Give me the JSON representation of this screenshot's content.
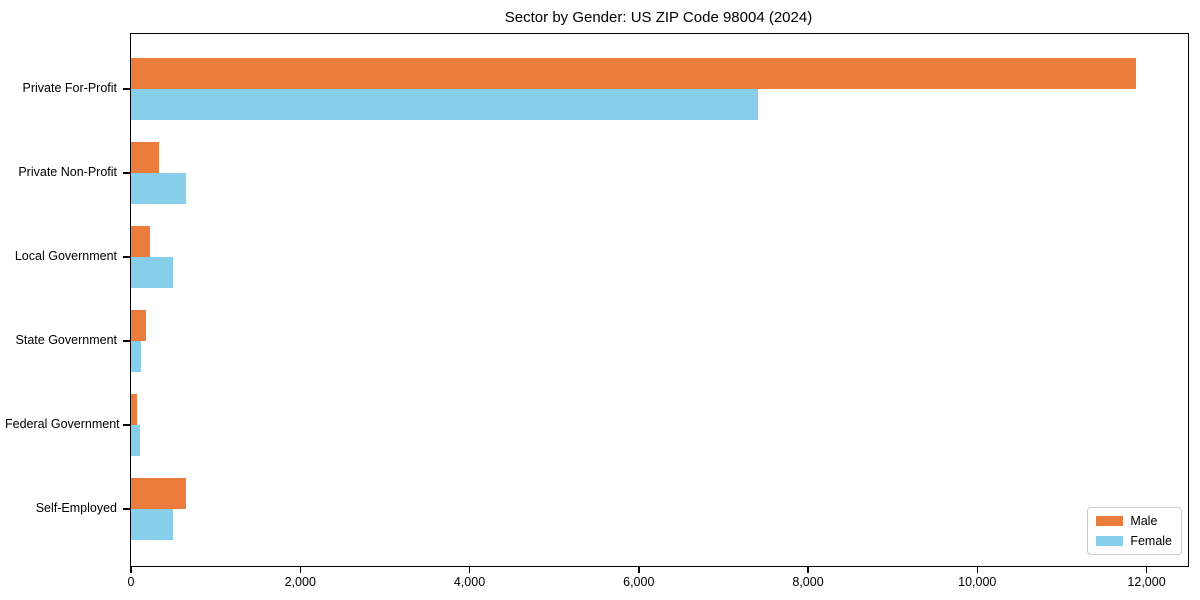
{
  "title": "Sector by Gender: US ZIP Code 98004 (2024)",
  "chart_data": {
    "type": "bar",
    "orientation": "horizontal",
    "title": "Sector by Gender: US ZIP Code 98004 (2024)",
    "categories": [
      "Private For-Profit",
      "Private Non-Profit",
      "Local Government",
      "State Government",
      "Federal Government",
      "Self-Employed"
    ],
    "series": [
      {
        "name": "Male",
        "color": "#ec7c3b",
        "values": [
          11880,
          330,
          220,
          180,
          75,
          655
        ]
      },
      {
        "name": "Female",
        "color": "#87ceeb",
        "values": [
          7410,
          645,
          490,
          120,
          110,
          490
        ]
      }
    ],
    "xlabel": "",
    "ylabel": "",
    "xlim": [
      0,
      12490
    ],
    "xticks": [
      0,
      2000,
      4000,
      6000,
      8000,
      10000,
      12000
    ],
    "xtick_labels": [
      "0",
      "2,000",
      "4,000",
      "6,000",
      "8,000",
      "10,000",
      "12,000"
    ],
    "grid": false,
    "legend_position": "lower right",
    "background_color": "#ffffff",
    "axis_color": "#000000"
  },
  "legend": {
    "items": [
      {
        "label": "Male",
        "color": "#ec7c3b"
      },
      {
        "label": "Female",
        "color": "#87ceeb"
      }
    ]
  }
}
